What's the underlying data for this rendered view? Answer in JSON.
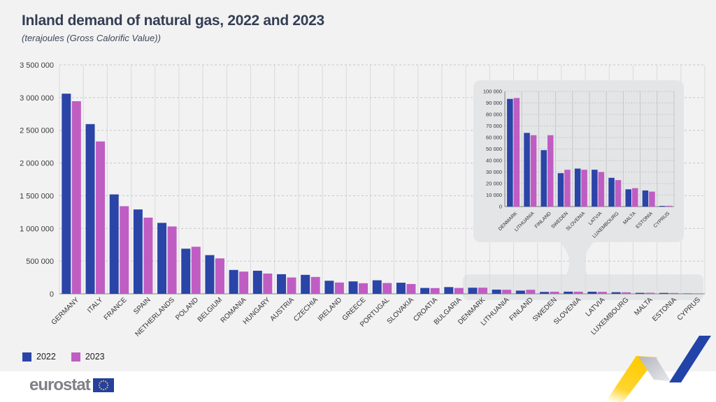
{
  "title": "Inland demand of natural gas, 2022 and 2023",
  "subtitle": "(terajoules (Gross Calorific Value))",
  "legend": {
    "items": [
      {
        "label": "2022",
        "color": "#2a44a7"
      },
      {
        "label": "2023",
        "color": "#c05dc3"
      }
    ]
  },
  "footer": {
    "logo_text": "eurostat"
  },
  "colors": {
    "series_2022": "#2a44a7",
    "series_2023": "#c05dc3",
    "card_bg": "#f2f2f3",
    "panel_bg": "#e4e5e7",
    "title_text": "#343e53",
    "eu_flag_blue": "#25409d",
    "eu_star_yellow": "#ffcc00",
    "ribbon_yellow": "#ffcd05",
    "ribbon_blue": "#2243a8",
    "ribbon_gray": "#c6c7cc"
  },
  "chart_data": {
    "type": "bar",
    "title": "Inland demand of natural gas, 2022 and 2023",
    "unit_label": "terajoules (Gross Calorific Value)",
    "grid": true,
    "legend_position": "bottom-left",
    "ylim": [
      0,
      3500000
    ],
    "ytick_step": 500000,
    "yticklabels": [
      "0",
      "500 000",
      "1 000 000",
      "1 500 000",
      "2 000 000",
      "2 500 000",
      "3 000 000",
      "3 500 000"
    ],
    "categories": [
      "GERMANY",
      "ITALY",
      "FRANCE",
      "SPAIN",
      "NETHERLANDS",
      "POLAND",
      "BELGIUM",
      "ROMANIA",
      "HUNGARY",
      "AUSTRIA",
      "CZECHIA",
      "IRELAND",
      "GREECE",
      "PORTUGAL",
      "SLOVAKIA",
      "CROATIA",
      "BULGARIA",
      "DENMARK",
      "LITHUANIA",
      "FINLAND",
      "SWEDEN",
      "SLOVENIA",
      "LATVIA",
      "LUXEMBOURG",
      "MALTA",
      "ESTONIA",
      "CYPRUS"
    ],
    "series": [
      {
        "name": "2022",
        "color": "#2a44a7",
        "values": [
          3060000,
          2595000,
          1520000,
          1290000,
          1085000,
          690000,
          592000,
          365000,
          353000,
          300000,
          290000,
          200000,
          190000,
          207000,
          170000,
          90000,
          103000,
          93500,
          64000,
          49000,
          29000,
          33000,
          32000,
          25000,
          15000,
          14000,
          600
        ]
      },
      {
        "name": "2023",
        "color": "#c05dc3",
        "values": [
          2945000,
          2330000,
          1340000,
          1165000,
          1030000,
          720000,
          542000,
          340000,
          310000,
          250000,
          258000,
          173000,
          162000,
          165000,
          150000,
          88000,
          90000,
          94300,
          62000,
          62000,
          32000,
          32000,
          30000,
          23000,
          16000,
          13000,
          700
        ]
      }
    ],
    "inset": {
      "ylim": [
        0,
        100000
      ],
      "ytick_step": 10000,
      "yticklabels": [
        "0",
        "10 000",
        "20 000",
        "30 000",
        "40 000",
        "50 000",
        "60 000",
        "70 000",
        "80 000",
        "90 000",
        "100 000"
      ],
      "categories": [
        "DENMARK",
        "LITHUANIA",
        "FINLAND",
        "SWEDEN",
        "SLOVENIA",
        "LATVIA",
        "LUXEMBOURG",
        "MALTA",
        "ESTONIA",
        "CYPRUS"
      ],
      "series": [
        {
          "name": "2022",
          "color": "#2a44a7",
          "values": [
            93500,
            64000,
            49000,
            29000,
            33000,
            32000,
            25000,
            15000,
            14000,
            600
          ]
        },
        {
          "name": "2023",
          "color": "#c05dc3",
          "values": [
            94300,
            62000,
            62000,
            32000,
            32000,
            30000,
            23000,
            16000,
            13000,
            700
          ]
        }
      ]
    }
  }
}
